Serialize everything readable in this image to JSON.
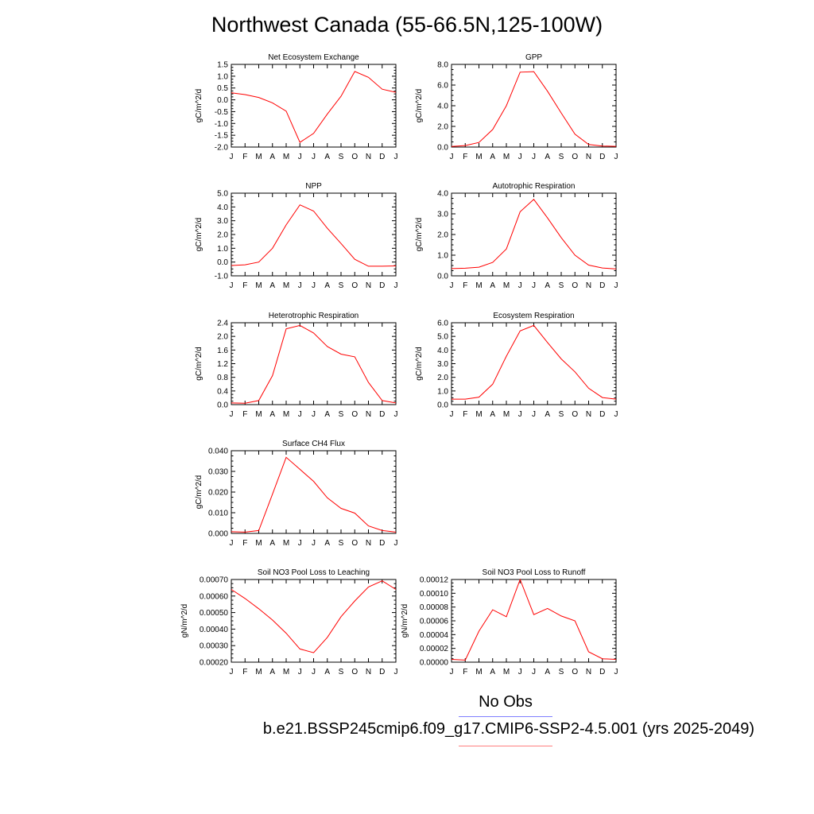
{
  "title": "Northwest Canada (55-66.5N,125-100W)",
  "legend": {
    "obs_label": "No Obs",
    "case_label": "b.e21.BSSP245cmip6.f09_g17.CMIP6-SSP2-4.5.001 (yrs 2025-2049)",
    "obs_color": "#7f7fff",
    "case_color": "#ff7f7f"
  },
  "chart_data": [
    {
      "type": "line",
      "title": "Net Ecosystem Exchange",
      "ylabel": "gC/m^2/d",
      "categories": [
        "J",
        "F",
        "M",
        "A",
        "M",
        "J",
        "J",
        "A",
        "S",
        "O",
        "N",
        "D",
        "J"
      ],
      "ylim": [
        -2.0,
        1.5
      ],
      "yticks": [
        -2.0,
        -1.5,
        -1.0,
        -0.5,
        0.0,
        0.5,
        1.0,
        1.5
      ],
      "ytick_labels": [
        "-2.0",
        "-1.5",
        "-1.0",
        "-0.5",
        "0.0",
        "0.5",
        "1.0",
        "1.5"
      ],
      "series": [
        {
          "values": [
            0.3,
            0.22,
            0.1,
            -0.13,
            -0.48,
            -1.8,
            -1.42,
            -0.6,
            0.15,
            1.2,
            0.95,
            0.45,
            0.32
          ],
          "color": "#ff0000"
        }
      ]
    },
    {
      "type": "line",
      "title": "GPP",
      "ylabel": "gC/m^2/d",
      "categories": [
        "J",
        "F",
        "M",
        "A",
        "M",
        "J",
        "J",
        "A",
        "S",
        "O",
        "N",
        "D",
        "J"
      ],
      "ylim": [
        0,
        8
      ],
      "yticks": [
        0,
        2,
        4,
        6,
        8
      ],
      "ytick_labels": [
        "0.0",
        "2.0",
        "4.0",
        "6.0",
        "8.0"
      ],
      "series": [
        {
          "values": [
            0.05,
            0.15,
            0.45,
            1.7,
            4.0,
            7.25,
            7.3,
            5.4,
            3.3,
            1.25,
            0.25,
            0.1,
            0.07
          ],
          "color": "#ff0000"
        }
      ]
    },
    {
      "type": "line",
      "title": "NPP",
      "ylabel": "gC/m^2/d",
      "categories": [
        "J",
        "F",
        "M",
        "A",
        "M",
        "J",
        "J",
        "A",
        "S",
        "O",
        "N",
        "D",
        "J"
      ],
      "ylim": [
        -1,
        5
      ],
      "yticks": [
        -1,
        0,
        1,
        2,
        3,
        4,
        5
      ],
      "ytick_labels": [
        "-1.0",
        "0.0",
        "1.0",
        "2.0",
        "3.0",
        "4.0",
        "5.0"
      ],
      "series": [
        {
          "values": [
            -0.25,
            -0.2,
            0.0,
            1.0,
            2.7,
            4.15,
            3.7,
            2.45,
            1.35,
            0.2,
            -0.3,
            -0.3,
            -0.28
          ],
          "color": "#ff0000"
        }
      ]
    },
    {
      "type": "line",
      "title": "Autotrophic Respiration",
      "ylabel": "gC/m^2/d",
      "categories": [
        "J",
        "F",
        "M",
        "A",
        "M",
        "J",
        "J",
        "A",
        "S",
        "O",
        "N",
        "D",
        "J"
      ],
      "ylim": [
        0,
        4
      ],
      "yticks": [
        0,
        1,
        2,
        3,
        4
      ],
      "ytick_labels": [
        "0.0",
        "1.0",
        "2.0",
        "3.0",
        "4.0"
      ],
      "series": [
        {
          "values": [
            0.35,
            0.37,
            0.42,
            0.65,
            1.3,
            3.1,
            3.7,
            2.8,
            1.85,
            1.0,
            0.52,
            0.38,
            0.33
          ],
          "color": "#ff0000"
        }
      ]
    },
    {
      "type": "line",
      "title": "Heterotrophic Respiration",
      "ylabel": "gC/m^2/d",
      "categories": [
        "J",
        "F",
        "M",
        "A",
        "M",
        "J",
        "J",
        "A",
        "S",
        "O",
        "N",
        "D",
        "J"
      ],
      "ylim": [
        0,
        2.4
      ],
      "yticks": [
        0,
        0.4,
        0.8,
        1.2,
        1.6,
        2.0,
        2.4
      ],
      "ytick_labels": [
        "0.0",
        "0.4",
        "0.8",
        "1.2",
        "1.6",
        "2.0",
        "2.4"
      ],
      "series": [
        {
          "values": [
            0.05,
            0.04,
            0.12,
            0.85,
            2.22,
            2.32,
            2.1,
            1.7,
            1.48,
            1.4,
            0.65,
            0.12,
            0.05
          ],
          "color": "#ff0000"
        }
      ]
    },
    {
      "type": "line",
      "title": "Ecosystem Respiration",
      "ylabel": "gC/m^2/d",
      "categories": [
        "J",
        "F",
        "M",
        "A",
        "M",
        "J",
        "J",
        "A",
        "S",
        "O",
        "N",
        "D",
        "J"
      ],
      "ylim": [
        0,
        6
      ],
      "yticks": [
        0,
        1,
        2,
        3,
        4,
        5,
        6
      ],
      "ytick_labels": [
        "0.0",
        "1.0",
        "2.0",
        "3.0",
        "4.0",
        "5.0",
        "6.0"
      ],
      "series": [
        {
          "values": [
            0.4,
            0.4,
            0.55,
            1.5,
            3.55,
            5.4,
            5.8,
            4.55,
            3.35,
            2.4,
            1.2,
            0.52,
            0.4
          ],
          "color": "#ff0000"
        }
      ]
    },
    {
      "type": "line",
      "title": "Surface CH4 Flux",
      "ylabel": "gC/m^2/d",
      "categories": [
        "J",
        "F",
        "M",
        "A",
        "M",
        "J",
        "J",
        "A",
        "S",
        "O",
        "N",
        "D",
        "J"
      ],
      "ylim": [
        0,
        0.04
      ],
      "yticks": [
        0,
        0.01,
        0.02,
        0.03,
        0.04
      ],
      "ytick_labels": [
        "0.000",
        "0.010",
        "0.020",
        "0.030",
        "0.040"
      ],
      "series": [
        {
          "values": [
            0.0008,
            0.0006,
            0.0014,
            0.019,
            0.0368,
            0.031,
            0.0252,
            0.0172,
            0.0121,
            0.0098,
            0.0036,
            0.0014,
            0.0006
          ],
          "color": "#ff0000"
        }
      ]
    },
    {
      "type": "line",
      "title": "Soil NO3 Pool Loss to Leaching",
      "ylabel": "gN/m^2/d",
      "categories": [
        "J",
        "F",
        "M",
        "A",
        "M",
        "J",
        "J",
        "A",
        "S",
        "O",
        "N",
        "D",
        "J"
      ],
      "ylim": [
        0.0002,
        0.0007
      ],
      "yticks": [
        0.0002,
        0.0003,
        0.0004,
        0.0005,
        0.0006,
        0.0007
      ],
      "ytick_labels": [
        "0.00020",
        "0.00030",
        "0.00040",
        "0.00050",
        "0.00060",
        "0.00070"
      ],
      "series": [
        {
          "values": [
            0.00064,
            0.000585,
            0.000523,
            0.000455,
            0.000375,
            0.00028,
            0.000257,
            0.00035,
            0.000475,
            0.00057,
            0.000655,
            0.000692,
            0.00064
          ],
          "color": "#ff0000"
        }
      ]
    },
    {
      "type": "line",
      "title": "Soil NO3 Pool Loss to Runoff",
      "ylabel": "gN/m^2/d",
      "categories": [
        "J",
        "F",
        "M",
        "A",
        "M",
        "J",
        "J",
        "A",
        "S",
        "O",
        "N",
        "D",
        "J"
      ],
      "ylim": [
        0,
        0.00012
      ],
      "yticks": [
        0,
        2e-05,
        4e-05,
        6e-05,
        8e-05,
        0.0001,
        0.00012
      ],
      "ytick_labels": [
        "0.00000",
        "0.00002",
        "0.00004",
        "0.00006",
        "0.00008",
        "0.00010",
        "0.00012"
      ],
      "series": [
        {
          "values": [
            4e-06,
            3e-06,
            4.5e-05,
            7.6e-05,
            6.6e-05,
            0.00012,
            6.9e-05,
            7.8e-05,
            6.7e-05,
            6e-05,
            1.5e-05,
            5e-06,
            4e-06
          ],
          "color": "#ff0000"
        }
      ]
    }
  ]
}
